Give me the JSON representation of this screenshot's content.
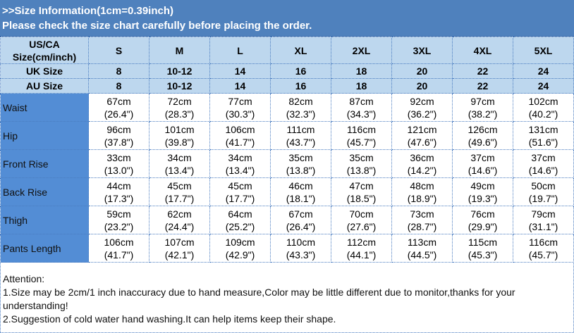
{
  "title": {
    "line1": ">>Size Information(1cm=0.39inch)",
    "line2": "Please check the size chart carefully before placing the order."
  },
  "header": {
    "label": "US/CA Size(cm/inch)",
    "sizes": [
      "S",
      "M",
      "L",
      "XL",
      "2XL",
      "3XL",
      "4XL",
      "5XL"
    ]
  },
  "uk": {
    "label": "UK Size",
    "values": [
      "8",
      "10-12",
      "14",
      "16",
      "18",
      "20",
      "22",
      "24"
    ]
  },
  "au": {
    "label": "AU Size",
    "values": [
      "8",
      "10-12",
      "14",
      "16",
      "18",
      "20",
      "22",
      "24"
    ]
  },
  "rows": [
    {
      "label": "Waist",
      "cm": [
        "67cm",
        "72cm",
        "77cm",
        "82cm",
        "87cm",
        "92cm",
        "97cm",
        "102cm"
      ],
      "in": [
        "(26.4\")",
        "(28.3\")",
        "(30.3\")",
        "(32.3\")",
        "(34.3\")",
        "(36.2\")",
        "(38.2\")",
        "(40.2\")"
      ]
    },
    {
      "label": "Hip",
      "cm": [
        "96cm",
        "101cm",
        "106cm",
        "111cm",
        "116cm",
        "121cm",
        "126cm",
        "131cm"
      ],
      "in": [
        "(37.8\")",
        "(39.8\")",
        "(41.7\")",
        "(43.7\")",
        "(45.7\")",
        "(47.6\")",
        "(49.6\")",
        "(51.6\")"
      ]
    },
    {
      "label": "Front Rise",
      "cm": [
        "33cm",
        "34cm",
        "34cm",
        "35cm",
        "35cm",
        "36cm",
        "37cm",
        "37cm"
      ],
      "in": [
        "(13.0\")",
        "(13.4\")",
        "(13.4\")",
        "(13.8\")",
        "(13.8\")",
        "(14.2\")",
        "(14.6\")",
        "(14.6\")"
      ]
    },
    {
      "label": "Back Rise",
      "cm": [
        "44cm",
        "45cm",
        "45cm",
        "46cm",
        "47cm",
        "48cm",
        "49cm",
        "50cm"
      ],
      "in": [
        "(17.3\")",
        "(17.7\")",
        "(17.7\")",
        "(18.1\")",
        "(18.5\")",
        "(18.9\")",
        "(19.3\")",
        "(19.7\")"
      ]
    },
    {
      "label": "Thigh",
      "cm": [
        "59cm",
        "62cm",
        "64cm",
        "67cm",
        "70cm",
        "73cm",
        "76cm",
        "79cm"
      ],
      "in": [
        "(23.2\")",
        "(24.4\")",
        "(25.2\")",
        "(26.4\")",
        "(27.6\")",
        "(28.7\")",
        "(29.9\")",
        "(31.1\")"
      ]
    },
    {
      "label": "Pants Length",
      "cm": [
        "106cm",
        "107cm",
        "109cm",
        "110cm",
        "112cm",
        "113cm",
        "115cm",
        "116cm"
      ],
      "in": [
        "(41.7\")",
        "(42.1\")",
        "(42.9\")",
        "(43.3\")",
        "(44.1\")",
        "(44.5\")",
        "(45.3\")",
        "(45.7\")"
      ]
    }
  ],
  "attention": {
    "heading": "Attention:",
    "note1": "1.Size may be 2cm/1 inch inaccuracy due to hand measure,Color may be little different due to monitor,thanks for your understanding!",
    "note2": "2.Suggestion of cold water hand washing.It can help items keep their shape."
  }
}
